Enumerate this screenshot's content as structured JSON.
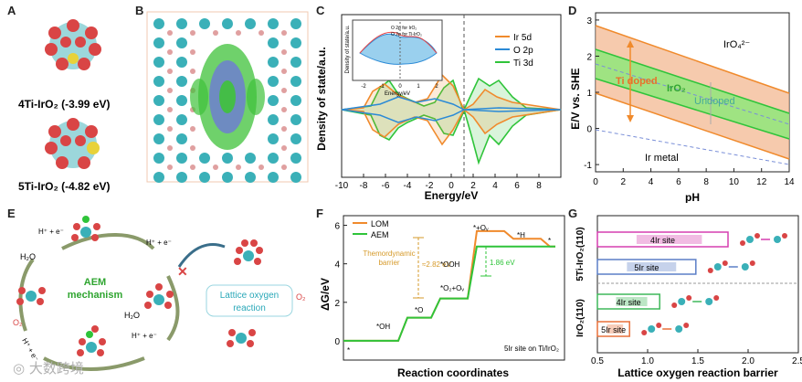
{
  "panels": {
    "A": "A",
    "B": "B",
    "C": "C",
    "D": "D",
    "E": "E",
    "F": "F",
    "G": "G"
  },
  "panelA": {
    "label1": "4Ti-IrO₂  (-3.99 eV)",
    "label2": "5Ti-IrO₂ (-4.82 eV)"
  },
  "panelC": {
    "xlabel": "Energy/eV",
    "ylabel": "Density of state/a.u.",
    "xticks": [
      "-10",
      "-8",
      "-6",
      "-4",
      "-2",
      "0",
      "2",
      "4",
      "6",
      "8"
    ],
    "legend": [
      "Ir 5d",
      "O 2p",
      "Ti 3d"
    ],
    "legend_colors": [
      "#f08a2c",
      "#2b8ad6",
      "#2fc43a"
    ],
    "inset": {
      "ylabel": "Density of state/a.u.",
      "xlabel": "Energy/eV",
      "legend": [
        "O 2p for IrO₂",
        "O 2p for Ti-IrO₂"
      ],
      "xticks": [
        "-2",
        "-1",
        "0",
        "1",
        "2"
      ]
    }
  },
  "panelD": {
    "xlabel": "pH",
    "ylabel": "E/V vs. SHE",
    "xticks": [
      "0",
      "2",
      "4",
      "6",
      "8",
      "10",
      "12",
      "14"
    ],
    "yticks": [
      "3",
      "2",
      "1",
      "0",
      "-1"
    ],
    "labels": {
      "iro4": "IrO₄²⁻",
      "ti_doped": "Ti doped",
      "iro2": "IrO₂",
      "undoped": "Undoped",
      "ir_metal": "Ir metal"
    }
  },
  "panelE": {
    "center1": "AEM",
    "center2": "mechanism",
    "h2o_left": "H₂O",
    "h2o_right": "H₂O",
    "step1": "H⁺ + e⁻",
    "step2": "H⁺ + e⁻",
    "step3": "H⁺ + e⁻",
    "step4": "H⁺ + e⁻",
    "o2": "O₂",
    "lattice1": "Lattice oxygen",
    "lattice2": "reaction",
    "o2_right": "O₂"
  },
  "panelF": {
    "ylabel": "ΔG/eV",
    "xlabel": "Reaction coordinates",
    "yticks": [
      "6",
      "4",
      "2",
      "0"
    ],
    "legend": [
      "LOM",
      "AEM"
    ],
    "legend_colors": [
      "#f08a2c",
      "#2fc43a"
    ],
    "barrier_label1": "Themordynamic",
    "barrier_label2": "barrier",
    "lom_barrier": "≈2.82 eV",
    "aem_barrier": "1.86 eV",
    "states": {
      "s0": "*",
      "oh": "*OH",
      "o": "*O",
      "ooh": "*OOH",
      "o2ov": "*O₂+Oᵥ",
      "ov": "*+Oᵥ",
      "h": "*H",
      "end": "*"
    },
    "note": "5Ir site on Ti/IrO₂"
  },
  "panelG": {
    "xlabel": "Lattice oxygen reaction barrier",
    "xticks": [
      "0.5",
      "1.0",
      "1.5",
      "2.0",
      "2.5"
    ],
    "group1": "5Ti-IrO₂(110)",
    "group2": "IrO₂(110)",
    "bars": [
      {
        "label": "4Ir site",
        "value": 1.8,
        "color": "#d63fb0"
      },
      {
        "label": "5Ir site",
        "value": 1.48,
        "color": "#5b7fc7"
      },
      {
        "label": "4Ir site",
        "value": 1.12,
        "color": "#3fb85a"
      },
      {
        "label": "5Ir site",
        "value": 0.82,
        "color": "#e8703a"
      }
    ]
  },
  "watermark": "大数跨境"
}
